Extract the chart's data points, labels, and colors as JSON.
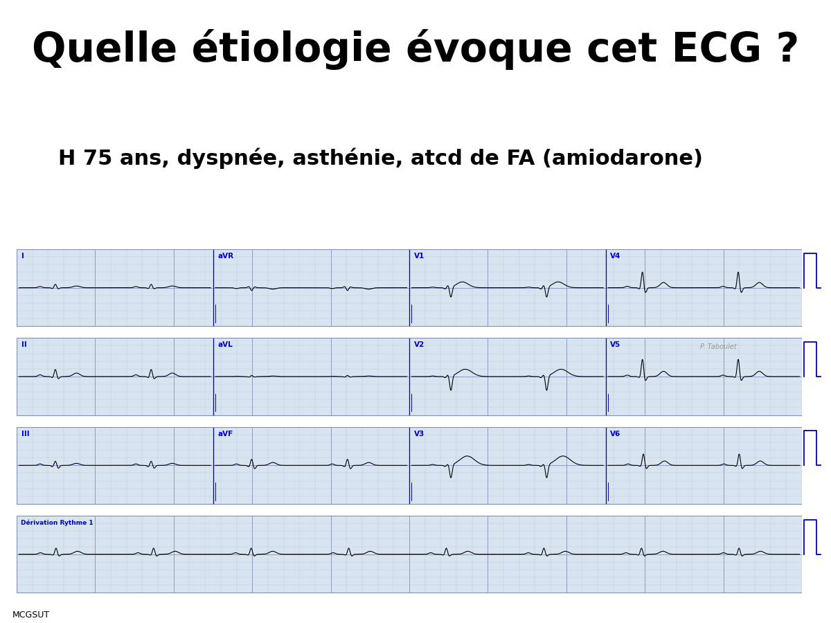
{
  "title": "Quelle étiologie évoque cet ECG ?",
  "subtitle": "H 75 ans, dyspnée, asthénie, atcd de FA (amiodarone)",
  "title_bg": "#F5C800",
  "title_color": "#000000",
  "ecg_bg": "#D8E4F0",
  "grid_minor_color": "#B0C4DE",
  "grid_major_color": "#8090B8",
  "ecg_line_color": "#000000",
  "label_color": "#0000CC",
  "watermark": "P. Taboulet",
  "footer": "MCGSUT",
  "white_bg": "#FFFFFF"
}
